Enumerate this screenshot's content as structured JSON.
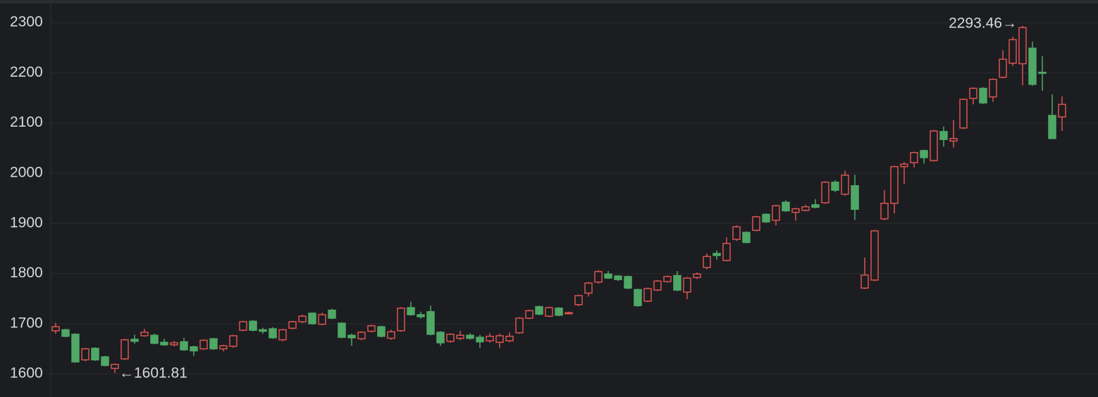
{
  "chart_data": {
    "type": "candlestick",
    "open": [
      1686,
      1688,
      1679,
      1628,
      1651,
      1634,
      1611,
      1630,
      1669,
      1676,
      1677,
      1663,
      1658,
      1664,
      1654,
      1650,
      1670,
      1650,
      1655,
      1687,
      1705,
      1688,
      1690,
      1668,
      1691,
      1704,
      1721,
      1699,
      1727,
      1701,
      1677,
      1670,
      1685,
      1694,
      1671,
      1686,
      1732,
      1718,
      1724,
      1683,
      1665,
      1671,
      1677,
      1673,
      1666,
      1663,
      1666,
      1682,
      1711,
      1734,
      1715,
      1731,
      1721,
      1738,
      1761,
      1783,
      1799,
      1795,
      1794,
      1768,
      1745,
      1767,
      1784,
      1796,
      1763,
      1792,
      1812,
      1840,
      1826,
      1868,
      1882,
      1886,
      1918,
      1906,
      1942,
      1922,
      1926,
      1937,
      1941,
      1982,
      1958,
      1975,
      1771,
      1787,
      1909,
      1940,
      2013,
      2021,
      2045,
      2025,
      2083,
      2064,
      2090,
      2149,
      2169,
      2152,
      2191,
      2219,
      2218,
      2249,
      2201,
      2115,
      2112
    ],
    "high": [
      1702,
      1690,
      1681,
      1652,
      1653,
      1636,
      1621,
      1670,
      1678,
      1690,
      1680,
      1670,
      1666,
      1672,
      1656,
      1669,
      1672,
      1658,
      1678,
      1706,
      1707,
      1692,
      1693,
      1690,
      1706,
      1718,
      1722,
      1722,
      1730,
      1703,
      1680,
      1685,
      1698,
      1696,
      1688,
      1733,
      1744,
      1724,
      1736,
      1685,
      1681,
      1686,
      1681,
      1678,
      1681,
      1680,
      1683,
      1713,
      1728,
      1736,
      1734,
      1733,
      1724,
      1758,
      1783,
      1807,
      1805,
      1797,
      1796,
      1770,
      1772,
      1787,
      1796,
      1805,
      1793,
      1802,
      1840,
      1846,
      1872,
      1896,
      1884,
      1915,
      1920,
      1937,
      1946,
      1931,
      1937,
      1948,
      1984,
      1986,
      2005,
      1997,
      1832,
      1887,
      1966,
      2015,
      2022,
      2043,
      2047,
      2086,
      2093,
      2106,
      2149,
      2171,
      2171,
      2189,
      2245,
      2272,
      2293.46,
      2262,
      2233,
      2157,
      2153
    ],
    "low": [
      1680,
      1673,
      1622,
      1625,
      1626,
      1615,
      1601.81,
      1628,
      1660,
      1674,
      1659,
      1656,
      1655,
      1646,
      1636,
      1648,
      1648,
      1645,
      1652,
      1685,
      1685,
      1680,
      1670,
      1665,
      1689,
      1701,
      1698,
      1697,
      1709,
      1671,
      1656,
      1667,
      1683,
      1673,
      1668,
      1684,
      1716,
      1710,
      1677,
      1656,
      1662,
      1667,
      1668,
      1652,
      1662,
      1652,
      1663,
      1680,
      1709,
      1717,
      1713,
      1715,
      1719,
      1735,
      1754,
      1780,
      1789,
      1785,
      1769,
      1734,
      1743,
      1765,
      1782,
      1765,
      1749,
      1789,
      1808,
      1828,
      1824,
      1865,
      1860,
      1884,
      1901,
      1896,
      1923,
      1905,
      1924,
      1930,
      1939,
      1962,
      1955,
      1907,
      1769,
      1785,
      1906,
      1920,
      1978,
      2011,
      2019,
      2023,
      2053,
      2051,
      2088,
      2137,
      2138,
      2142,
      2189,
      2214,
      2175,
      2174,
      2164,
      2069,
      2084
    ],
    "close": [
      1694,
      1675,
      1624,
      1650,
      1628,
      1617,
      1619,
      1668,
      1665,
      1683,
      1661,
      1658,
      1662,
      1648,
      1646,
      1667,
      1650,
      1656,
      1676,
      1704,
      1687,
      1685,
      1672,
      1688,
      1704,
      1715,
      1700,
      1718,
      1711,
      1673,
      1672,
      1683,
      1696,
      1675,
      1684,
      1731,
      1718,
      1714,
      1679,
      1662,
      1679,
      1677,
      1671,
      1664,
      1675,
      1676,
      1675,
      1711,
      1726,
      1719,
      1732,
      1717,
      1722,
      1756,
      1781,
      1804,
      1791,
      1788,
      1771,
      1736,
      1770,
      1785,
      1794,
      1767,
      1791,
      1799,
      1834,
      1836,
      1860,
      1893,
      1862,
      1913,
      1903,
      1935,
      1925,
      1929,
      1933,
      1932,
      1982,
      1966,
      1996,
      1928,
      1797,
      1885,
      1940,
      2013,
      2018,
      2041,
      2031,
      2084,
      2067,
      2069,
      2147,
      2169,
      2140,
      2187,
      2227,
      2266,
      2290,
      2177,
      2199,
      2069,
      2137
    ],
    "up_color": "#d9534f",
    "down_color": "#4fa866",
    "annotations": [
      "2293.46→",
      "←1601.81"
    ],
    "ylim": [
      1554,
      2338
    ],
    "yticks": [
      1600,
      1700,
      1800,
      1900,
      2000,
      2100,
      2200,
      2300
    ],
    "grid": true
  }
}
